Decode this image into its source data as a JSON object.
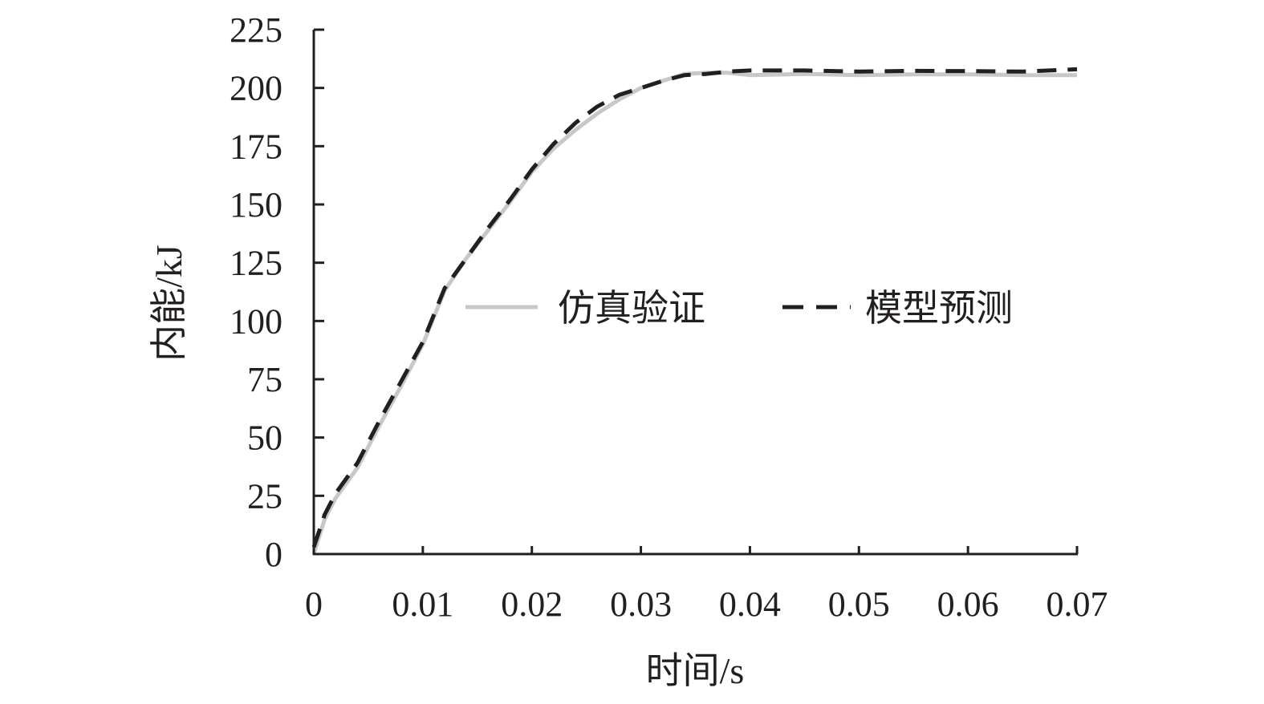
{
  "chart_data": {
    "type": "line",
    "xlabel": "时间/s",
    "ylabel": "内能/kJ",
    "xlim": [
      0,
      0.07
    ],
    "ylim": [
      0,
      225
    ],
    "x_ticks": [
      0,
      0.01,
      0.02,
      0.03,
      0.04,
      0.05,
      0.06,
      0.07
    ],
    "x_tick_labels": [
      "0",
      "0.01",
      "0.02",
      "0.03",
      "0.04",
      "0.05",
      "0.06",
      "0.07"
    ],
    "y_ticks": [
      0,
      25,
      50,
      75,
      100,
      125,
      150,
      175,
      200,
      225
    ],
    "y_tick_labels": [
      "0",
      "25",
      "50",
      "75",
      "100",
      "125",
      "150",
      "175",
      "200",
      "225"
    ],
    "grid": false,
    "legend_position": "center",
    "series": [
      {
        "name": "仿真验证",
        "color": "#c8c8c8",
        "style": "solid",
        "x": [
          0,
          0.001,
          0.002,
          0.004,
          0.006,
          0.008,
          0.01,
          0.012,
          0.014,
          0.016,
          0.018,
          0.02,
          0.022,
          0.024,
          0.026,
          0.028,
          0.03,
          0.032,
          0.034,
          0.036,
          0.038,
          0.04,
          0.045,
          0.05,
          0.055,
          0.06,
          0.065,
          0.07
        ],
        "y": [
          0,
          15,
          24,
          37,
          55,
          72,
          90,
          113,
          127,
          139,
          151,
          164,
          174,
          182,
          189,
          195,
          200,
          203,
          206,
          206.5,
          206.5,
          205.5,
          206,
          205.5,
          205.8,
          205.8,
          205.5,
          205.5
        ]
      },
      {
        "name": "模型预测",
        "color": "#231f20",
        "style": "dashed",
        "x": [
          0,
          0.001,
          0.002,
          0.004,
          0.006,
          0.008,
          0.01,
          0.012,
          0.014,
          0.016,
          0.018,
          0.02,
          0.022,
          0.024,
          0.026,
          0.028,
          0.03,
          0.032,
          0.034,
          0.036,
          0.038,
          0.04,
          0.045,
          0.05,
          0.055,
          0.06,
          0.065,
          0.07
        ],
        "y": [
          3,
          17,
          26,
          39,
          57,
          74,
          91,
          114,
          127,
          140,
          152,
          165,
          176,
          185,
          192,
          197,
          200,
          203,
          205.5,
          206,
          207,
          207.5,
          207.5,
          207,
          207.3,
          207.2,
          207,
          208
        ]
      }
    ]
  }
}
